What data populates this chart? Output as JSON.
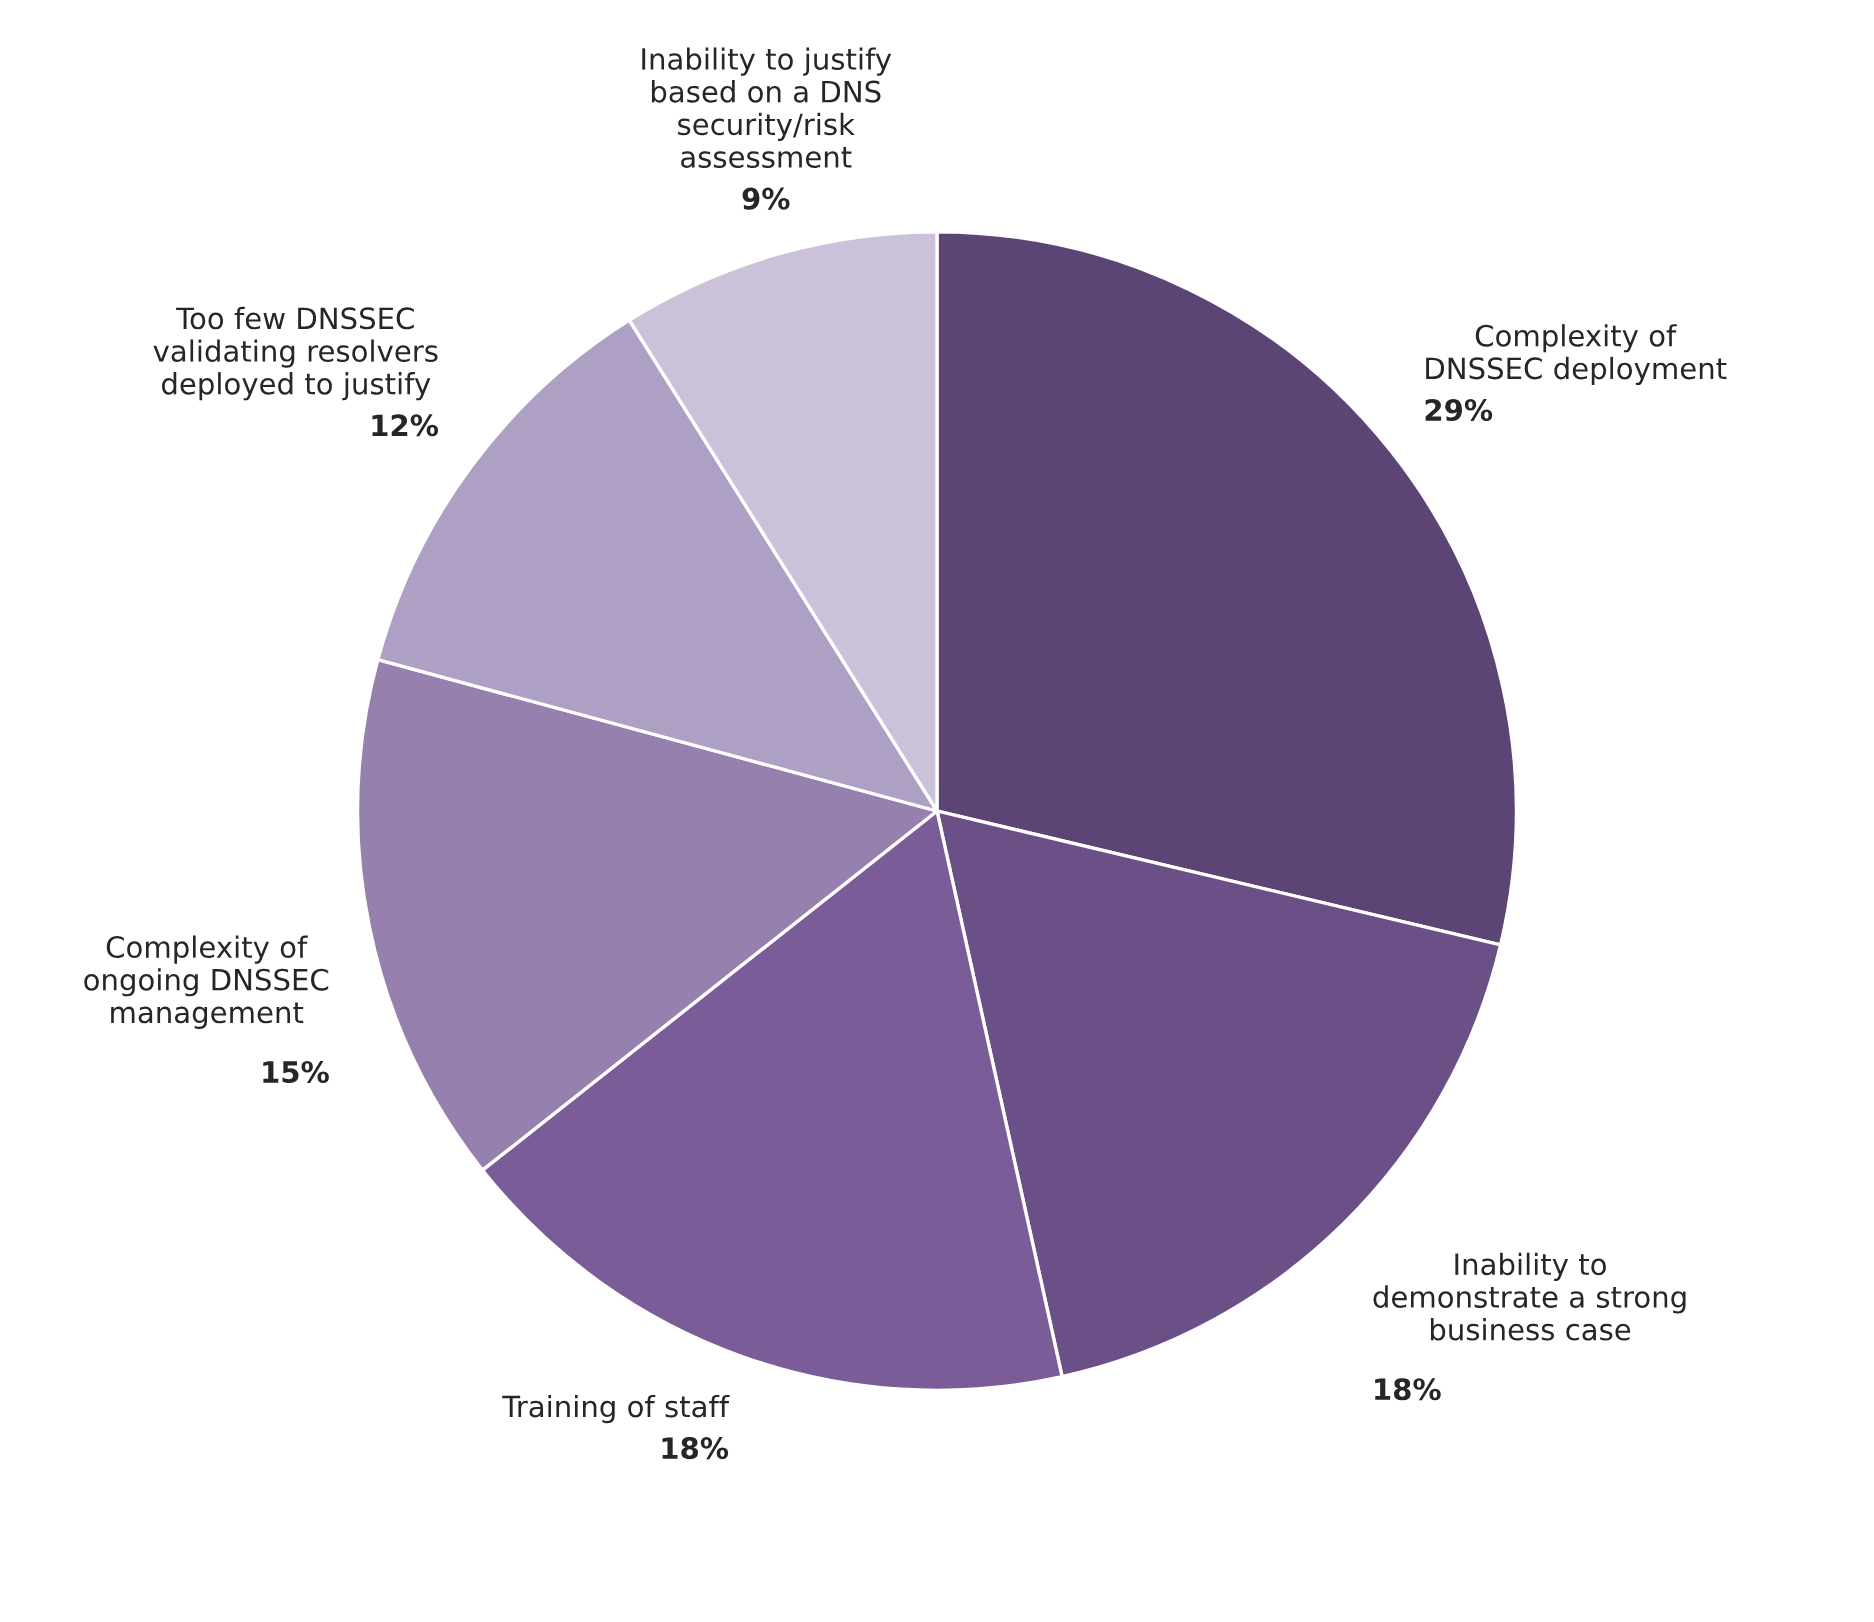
{
  "chart_data": {
    "type": "pie",
    "categories": [
      "Complexity of\nDNSSEC deployment",
      "Inability to\ndemonstrate a strong\nbusiness case",
      "Training of staff",
      "Complexity of\nongoing DNSSEC\nmanagement",
      "Too few DNSSEC\nvalidating resolvers\ndeployed to justify",
      "Inability to justify\nbased on a DNS\nsecurity/risk\nassessment"
    ],
    "values": [
      29,
      18,
      18,
      15,
      12,
      9
    ],
    "value_labels": [
      "29%",
      "18%",
      "18%",
      "15%",
      "12%",
      "9%"
    ],
    "colors": [
      "#5c4575",
      "#6b5088",
      "#7a5c99",
      "#9580ae",
      "#ada0c4",
      "#cbc2d9"
    ],
    "legend": false
  }
}
